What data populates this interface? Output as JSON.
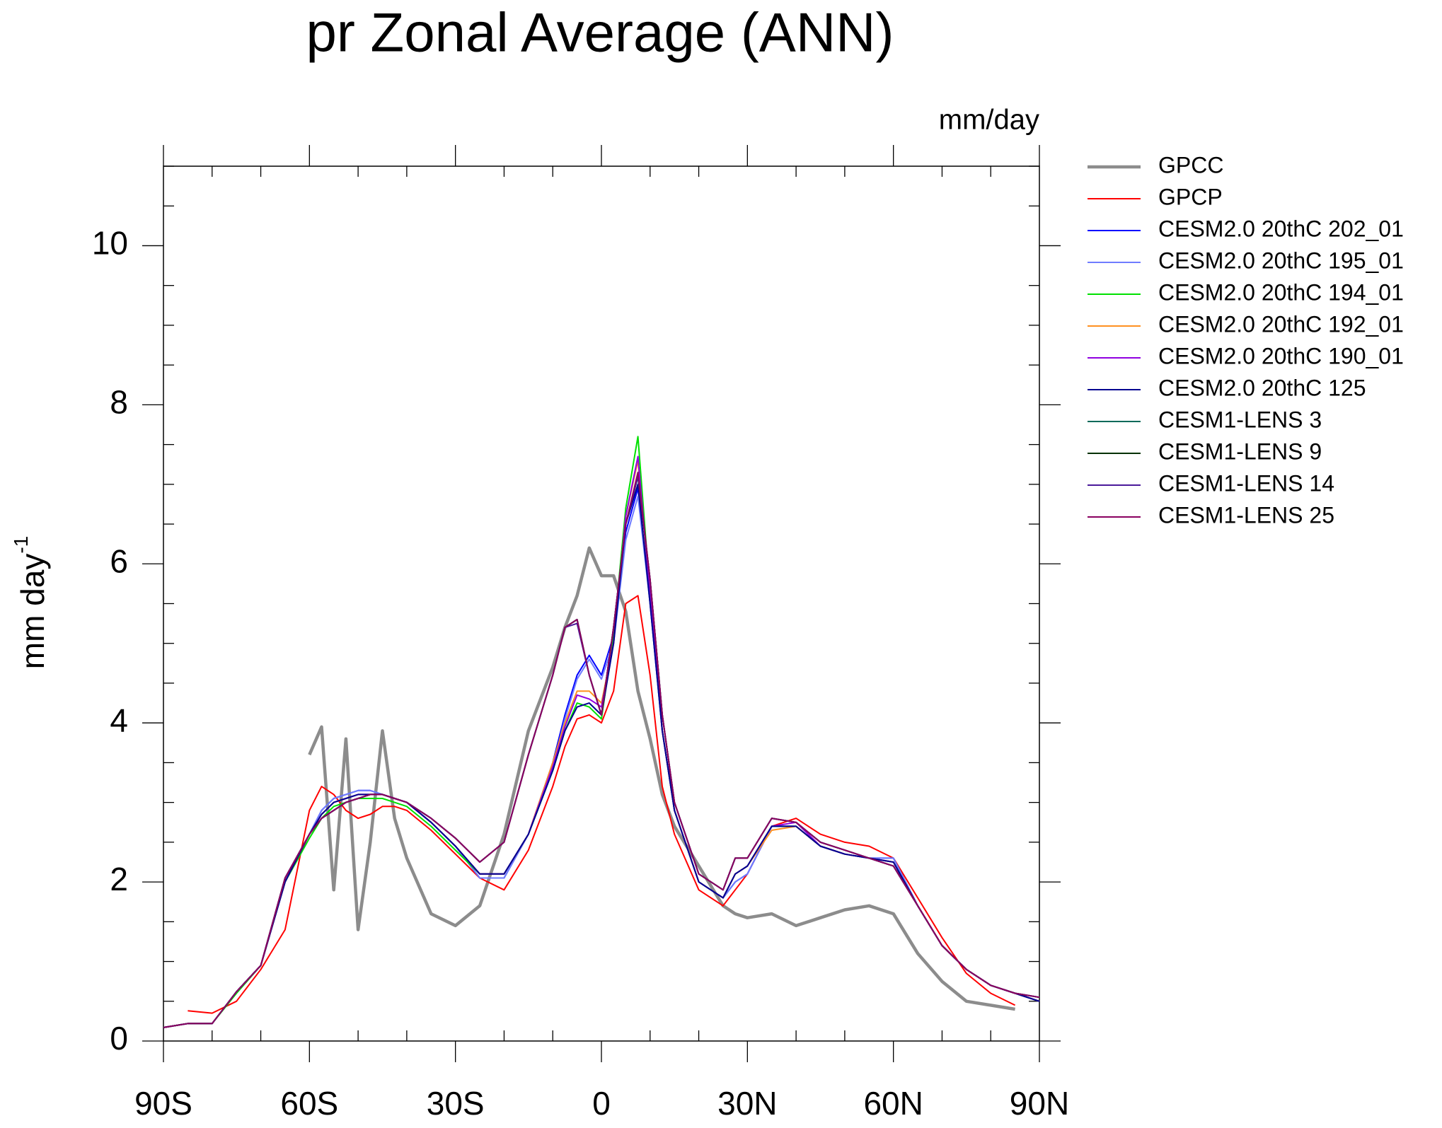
{
  "chart_data": {
    "type": "line",
    "title": "pr Zonal Average (ANN)",
    "units_label": "mm/day",
    "ylabel": "mm day",
    "ylabel_exponent": "-1",
    "x": [
      -90,
      -85,
      -80,
      -75,
      -70,
      -65,
      -60,
      -57.5,
      -55,
      -52.5,
      -50,
      -47.5,
      -45,
      -42.5,
      -40,
      -35,
      -30,
      -25,
      -20,
      -15,
      -10,
      -7.5,
      -5,
      -2.5,
      0,
      2.5,
      5,
      7.5,
      10,
      12.5,
      15,
      20,
      25,
      27.5,
      30,
      35,
      40,
      45,
      50,
      55,
      60,
      65,
      70,
      75,
      80,
      85,
      90
    ],
    "xlim": [
      -90,
      90
    ],
    "xticks": [
      {
        "value": -90,
        "label": "90S"
      },
      {
        "value": -60,
        "label": "60S"
      },
      {
        "value": -30,
        "label": "30S"
      },
      0,
      {
        "value": 30,
        "label": "30N"
      },
      {
        "value": 60,
        "label": "60N"
      },
      {
        "value": 90,
        "label": "90N"
      }
    ],
    "xminorticks": [
      -80,
      -70,
      -50,
      -40,
      -20,
      -10,
      10,
      20,
      40,
      50,
      70,
      80
    ],
    "ylim": [
      0,
      11
    ],
    "yticks": [
      0,
      2,
      4,
      6,
      8,
      10
    ],
    "yminorticks": [
      0.5,
      1,
      1.5,
      2.5,
      3,
      3.5,
      4.5,
      5,
      5.5,
      6.5,
      7,
      7.5,
      8.5,
      9,
      9.5,
      10.5,
      11
    ],
    "legend": "right",
    "series": [
      {
        "name": "GPCC",
        "color": "#8c8c8c",
        "values": [
          null,
          null,
          null,
          null,
          null,
          null,
          3.6,
          3.95,
          1.9,
          3.8,
          1.4,
          2.5,
          3.9,
          2.8,
          2.3,
          1.6,
          1.45,
          1.7,
          2.6,
          3.9,
          4.7,
          5.2,
          5.6,
          6.2,
          5.85,
          5.85,
          5.4,
          4.4,
          3.8,
          3.1,
          2.7,
          2.2,
          1.7,
          1.6,
          1.55,
          1.6,
          1.45,
          1.55,
          1.65,
          1.7,
          1.6,
          1.1,
          0.75,
          0.5,
          0.45,
          0.4,
          null
        ]
      },
      {
        "name": "GPCP",
        "color": "#ff0000",
        "values": [
          null,
          0.38,
          0.35,
          0.5,
          0.9,
          1.4,
          2.9,
          3.2,
          3.1,
          2.9,
          2.8,
          2.85,
          2.95,
          2.95,
          2.9,
          2.65,
          2.35,
          2.05,
          1.9,
          2.4,
          3.2,
          3.7,
          4.05,
          4.1,
          4.0,
          4.4,
          5.5,
          5.6,
          4.6,
          3.2,
          2.6,
          1.9,
          1.7,
          1.9,
          2.1,
          2.7,
          2.8,
          2.6,
          2.5,
          2.45,
          2.3,
          1.8,
          1.3,
          0.85,
          0.6,
          0.45,
          null
        ]
      },
      {
        "name": "CESM2.0 20thC 202_01",
        "color": "#0000ff",
        "values": [
          0.17,
          0.22,
          0.22,
          0.62,
          0.95,
          2.0,
          2.6,
          2.9,
          3.05,
          3.1,
          3.15,
          3.15,
          3.1,
          3.05,
          3.0,
          2.75,
          2.45,
          2.05,
          2.05,
          2.6,
          3.5,
          4.1,
          4.6,
          4.85,
          4.6,
          5.1,
          6.4,
          6.95,
          5.5,
          3.9,
          2.9,
          2.0,
          1.8,
          2.0,
          2.1,
          2.7,
          2.7,
          2.45,
          2.35,
          2.3,
          2.3,
          1.7,
          1.2,
          0.9,
          0.7,
          0.6,
          0.5
        ]
      },
      {
        "name": "CESM2.0 20thC 195_01",
        "color": "#6f7cff",
        "values": [
          0.17,
          0.22,
          0.22,
          0.62,
          0.95,
          2.0,
          2.6,
          2.9,
          3.05,
          3.1,
          3.15,
          3.15,
          3.1,
          3.05,
          3.0,
          2.75,
          2.45,
          2.05,
          2.05,
          2.6,
          3.45,
          4.05,
          4.55,
          4.8,
          4.55,
          5.0,
          6.3,
          6.85,
          5.5,
          3.9,
          2.9,
          2.0,
          1.8,
          2.0,
          2.1,
          2.7,
          2.7,
          2.45,
          2.35,
          2.3,
          2.3,
          1.7,
          1.2,
          0.9,
          0.7,
          0.6,
          0.5
        ]
      },
      {
        "name": "CESM2.0 20thC 194_01",
        "color": "#00e000",
        "values": [
          0.17,
          0.22,
          0.22,
          0.6,
          0.95,
          2.0,
          2.55,
          2.8,
          2.95,
          3.0,
          3.05,
          3.05,
          3.05,
          3.0,
          2.95,
          2.7,
          2.4,
          2.1,
          2.1,
          2.6,
          3.4,
          3.9,
          4.25,
          4.2,
          4.05,
          5.1,
          6.7,
          7.6,
          5.6,
          3.9,
          2.9,
          2.0,
          1.8,
          2.1,
          2.2,
          2.7,
          2.7,
          2.45,
          2.35,
          2.3,
          2.25,
          1.7,
          1.2,
          0.9,
          0.7,
          0.6,
          0.5
        ]
      },
      {
        "name": "CESM2.0 20thC 192_01",
        "color": "#ff9020",
        "values": [
          0.17,
          0.22,
          0.22,
          0.62,
          0.95,
          2.0,
          2.6,
          2.85,
          3.0,
          3.05,
          3.1,
          3.1,
          3.1,
          3.05,
          3.0,
          2.75,
          2.45,
          2.1,
          2.1,
          2.6,
          3.5,
          4.0,
          4.4,
          4.4,
          4.25,
          5.0,
          6.6,
          7.3,
          5.6,
          3.9,
          2.9,
          2.0,
          1.8,
          2.1,
          2.2,
          2.65,
          2.7,
          2.45,
          2.35,
          2.3,
          2.25,
          1.7,
          1.2,
          0.9,
          0.7,
          0.6,
          0.5
        ]
      },
      {
        "name": "CESM2.0 20thC 190_01",
        "color": "#9000e0",
        "values": [
          0.17,
          0.22,
          0.22,
          0.62,
          0.95,
          2.0,
          2.6,
          2.85,
          3.0,
          3.05,
          3.1,
          3.1,
          3.1,
          3.05,
          3.0,
          2.75,
          2.45,
          2.1,
          2.1,
          2.6,
          3.45,
          3.95,
          4.35,
          4.3,
          4.2,
          5.0,
          6.6,
          7.35,
          5.6,
          3.9,
          2.9,
          2.0,
          1.8,
          2.1,
          2.2,
          2.7,
          2.75,
          2.45,
          2.35,
          2.3,
          2.25,
          1.7,
          1.2,
          0.9,
          0.7,
          0.6,
          0.5
        ]
      },
      {
        "name": "CESM2.0 20thC 125",
        "color": "#000090",
        "values": [
          0.17,
          0.22,
          0.22,
          0.62,
          0.95,
          2.0,
          2.6,
          2.85,
          3.0,
          3.05,
          3.1,
          3.1,
          3.1,
          3.05,
          3.0,
          2.75,
          2.45,
          2.1,
          2.1,
          2.6,
          3.4,
          3.9,
          4.2,
          4.25,
          4.1,
          5.0,
          6.5,
          7.0,
          5.5,
          3.9,
          2.9,
          2.0,
          1.8,
          2.1,
          2.2,
          2.7,
          2.7,
          2.45,
          2.35,
          2.3,
          2.25,
          1.7,
          1.2,
          0.9,
          0.7,
          0.6,
          0.5
        ]
      },
      {
        "name": "CESM1-LENS 3",
        "color": "#006a5a",
        "values": [
          0.17,
          0.22,
          0.22,
          0.62,
          0.95,
          2.05,
          2.6,
          2.8,
          2.9,
          3.0,
          3.05,
          3.1,
          3.1,
          3.05,
          3.0,
          2.8,
          2.55,
          2.25,
          2.5,
          3.6,
          4.6,
          5.2,
          5.3,
          4.6,
          4.1,
          5.2,
          6.5,
          7.1,
          5.8,
          4.1,
          3.0,
          2.1,
          1.9,
          2.3,
          2.3,
          2.8,
          2.75,
          2.5,
          2.4,
          2.3,
          2.2,
          1.7,
          1.2,
          0.9,
          0.7,
          0.6,
          0.55
        ]
      },
      {
        "name": "CESM1-LENS 9",
        "color": "#003000",
        "values": [
          0.17,
          0.22,
          0.22,
          0.62,
          0.95,
          2.05,
          2.6,
          2.8,
          2.9,
          3.0,
          3.05,
          3.1,
          3.1,
          3.05,
          3.0,
          2.8,
          2.55,
          2.25,
          2.5,
          3.6,
          4.6,
          5.2,
          5.3,
          4.6,
          4.1,
          5.2,
          6.5,
          7.1,
          5.8,
          4.1,
          3.0,
          2.1,
          1.9,
          2.3,
          2.3,
          2.8,
          2.75,
          2.5,
          2.4,
          2.3,
          2.2,
          1.7,
          1.2,
          0.9,
          0.7,
          0.6,
          0.55
        ]
      },
      {
        "name": "CESM1-LENS 14",
        "color": "#4a1a9a",
        "values": [
          0.17,
          0.22,
          0.22,
          0.62,
          0.95,
          2.05,
          2.6,
          2.8,
          2.9,
          3.0,
          3.05,
          3.1,
          3.1,
          3.05,
          3.0,
          2.8,
          2.55,
          2.25,
          2.5,
          3.6,
          4.6,
          5.2,
          5.25,
          4.6,
          4.1,
          5.2,
          6.5,
          7.1,
          5.8,
          4.1,
          3.0,
          2.1,
          1.9,
          2.3,
          2.3,
          2.8,
          2.75,
          2.5,
          2.4,
          2.3,
          2.2,
          1.7,
          1.2,
          0.9,
          0.7,
          0.6,
          0.55
        ]
      },
      {
        "name": "CESM1-LENS 25",
        "color": "#8a0060",
        "values": [
          0.17,
          0.22,
          0.22,
          0.62,
          0.95,
          2.05,
          2.6,
          2.8,
          2.9,
          3.0,
          3.05,
          3.1,
          3.1,
          3.05,
          3.0,
          2.8,
          2.55,
          2.25,
          2.5,
          3.6,
          4.6,
          5.2,
          5.3,
          4.6,
          4.1,
          5.2,
          6.5,
          7.15,
          5.8,
          4.1,
          3.0,
          2.1,
          1.9,
          2.3,
          2.3,
          2.8,
          2.75,
          2.5,
          2.4,
          2.3,
          2.2,
          1.7,
          1.2,
          0.9,
          0.7,
          0.6,
          0.55
        ]
      }
    ]
  }
}
